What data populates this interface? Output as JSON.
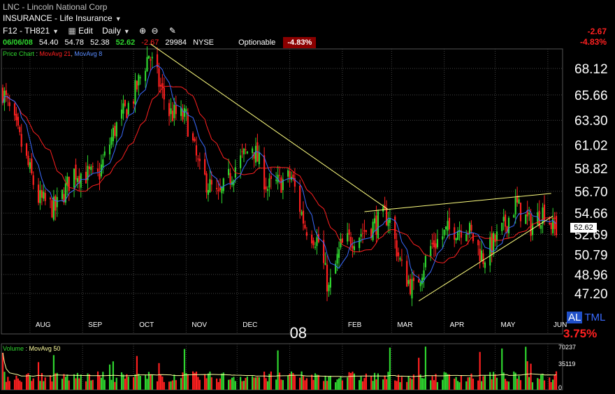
{
  "header": {
    "symbol_title": "LNC - Lincoln National Corp",
    "industry": "INSURANCE - Life Insurance",
    "toolbar": {
      "symbol_tab": "F12 - TH821",
      "edit_label": "Edit",
      "period_label": "Daily"
    },
    "quote": {
      "date": "06/06/08",
      "open": "54.40",
      "high": "54.78",
      "low": "52.38",
      "close": "52.62",
      "change": "-2.67",
      "volume": "29984",
      "exchange": "NYSE",
      "optionable": "Optionable",
      "pct_change": "-4.83%"
    },
    "right_change": "-2.67",
    "right_pct": "-4.83%"
  },
  "legend": {
    "price_chart": "Price Chart",
    "ma21": "MovAvg 21",
    "ma8": "MovAvg 8"
  },
  "volume_legend": {
    "volume": "Volume",
    "ma50": "MovAvg 50"
  },
  "right_panel": {
    "al": "AL",
    "tml": "TML",
    "pct": "3.75%",
    "last_price_box": "52.62"
  },
  "colors": {
    "up": "#2fd52f",
    "down": "#ff2020",
    "ma21": "#ff2020",
    "ma8": "#3a6bff",
    "trendline": "#ffff80",
    "volume_ma": "#ffffa0",
    "grid": "#444444"
  },
  "chart_data": [
    {
      "type": "candlestick",
      "title": "LNC - Lincoln National Corp",
      "ylim": [
        45.5,
        72.5
      ],
      "y_ticks": [
        "68.12",
        "65.66",
        "63.30",
        "61.02",
        "58.82",
        "56.70",
        "54.66",
        "52.69",
        "50.79",
        "48.96",
        "47.20"
      ],
      "x_tick_labels": [
        "AUG",
        "SEP",
        "OCT",
        "NOV",
        "DEC",
        "08",
        "FEB",
        "MAR",
        "APR",
        "MAY",
        "JUN"
      ],
      "series_names": [
        "MovAvg 21",
        "MovAvg 8"
      ],
      "anchor_closes": [
        [
          "2007-07-16",
          66.0
        ],
        [
          "2007-07-27",
          61.0
        ],
        [
          "2007-08-06",
          56.0
        ],
        [
          "2007-08-16",
          55.0
        ],
        [
          "2007-08-27",
          58.5
        ],
        [
          "2007-09-10",
          58.0
        ],
        [
          "2007-09-20",
          62.5
        ],
        [
          "2007-10-01",
          65.5
        ],
        [
          "2007-10-10",
          69.5
        ],
        [
          "2007-10-22",
          64.0
        ],
        [
          "2007-11-01",
          63.5
        ],
        [
          "2007-11-09",
          58.5
        ],
        [
          "2007-11-20",
          56.0
        ],
        [
          "2007-11-30",
          59.0
        ],
        [
          "2007-12-10",
          61.0
        ],
        [
          "2007-12-19",
          57.0
        ],
        [
          "2008-01-02",
          58.0
        ],
        [
          "2008-01-10",
          53.5
        ],
        [
          "2008-01-18",
          52.0
        ],
        [
          "2008-01-24",
          47.5
        ],
        [
          "2008-01-31",
          51.5
        ],
        [
          "2008-02-08",
          52.5
        ],
        [
          "2008-02-19",
          53.5
        ],
        [
          "2008-02-28",
          54.5
        ],
        [
          "2008-03-07",
          49.5
        ],
        [
          "2008-03-14",
          47.5
        ],
        [
          "2008-03-24",
          51.5
        ],
        [
          "2008-04-03",
          53.0
        ],
        [
          "2008-04-14",
          53.5
        ],
        [
          "2008-04-24",
          50.5
        ],
        [
          "2008-05-05",
          53.0
        ],
        [
          "2008-05-13",
          55.5
        ],
        [
          "2008-05-22",
          53.5
        ],
        [
          "2008-05-30",
          55.0
        ],
        [
          "2008-06-06",
          52.62
        ]
      ],
      "last_bar": {
        "date": "2008-06-06",
        "open": 54.4,
        "high": 54.78,
        "low": 52.38,
        "close": 52.62
      },
      "trendlines": [
        {
          "from": [
            "2007-10-11",
            70.4
          ],
          "to": [
            "2008-02-28",
            55.0
          ]
        },
        {
          "from": [
            "2008-02-14",
            54.8
          ],
          "to": [
            "2008-06-03",
            56.5
          ]
        },
        {
          "from": [
            "2008-03-17",
            46.5
          ],
          "to": [
            "2008-06-04",
            54.4
          ]
        }
      ]
    },
    {
      "type": "bar",
      "title": "Volume",
      "series_name": "MovAvg 50",
      "y_ticks": [
        "70237",
        "35119",
        "0"
      ],
      "ylim": [
        0,
        70237
      ],
      "last_volume": 29984
    }
  ]
}
